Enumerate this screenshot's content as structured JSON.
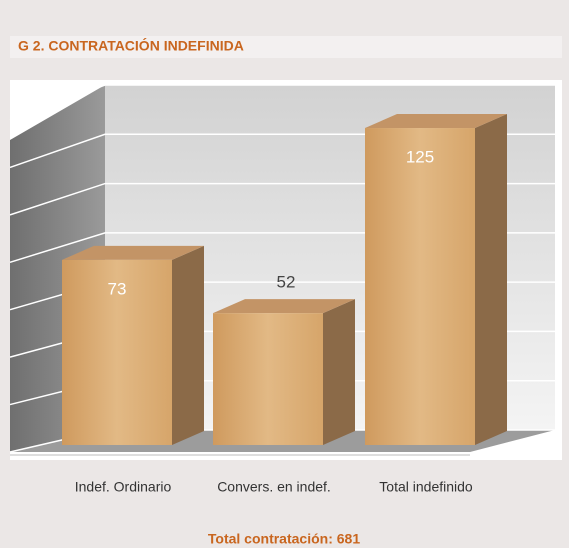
{
  "chart_data": {
    "type": "bar",
    "title": "G 2. CONTRATACIÓN INDEFINIDA",
    "categories": [
      "Indef. Ordinario",
      "Convers. en indef.",
      "Total indefinido"
    ],
    "values": [
      73,
      52,
      125
    ],
    "color": "#d9ab72",
    "ylim": [
      0,
      140
    ],
    "yticks": [
      0,
      20,
      40,
      60,
      80,
      100,
      120,
      140
    ],
    "grid": true,
    "footer": "Total contratación: 681"
  }
}
